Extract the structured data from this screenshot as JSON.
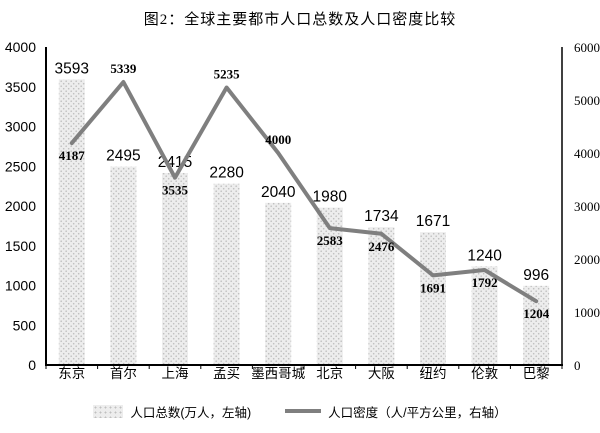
{
  "title": "图2：全球主要都市人口总数及人口密度比较",
  "legend": {
    "bar_label": "人口总数(万人，左轴)",
    "line_label": "人口密度（人/平方公里，右轴）"
  },
  "chart_data": {
    "type": "bar",
    "subtype": "bar-line-combo",
    "title": "图2：全球主要都市人口总数及人口密度比较",
    "categories": [
      "东京",
      "首尔",
      "上海",
      "孟买",
      "墨西哥城",
      "北京",
      "大阪",
      "纽约",
      "伦敦",
      "巴黎"
    ],
    "series": [
      {
        "name": "人口总数(万人，左轴)",
        "type": "bar",
        "axis": "left",
        "values": [
          3593,
          2495,
          2415,
          2280,
          2040,
          1980,
          1734,
          1671,
          1240,
          996
        ]
      },
      {
        "name": "人口密度（人/平方公里，右轴）",
        "type": "line",
        "axis": "right",
        "values": [
          4187,
          5339,
          3535,
          5235,
          4000,
          2583,
          2476,
          1691,
          1792,
          1204
        ],
        "label_positions": [
          "below",
          "above",
          "below",
          "above",
          "above",
          "below",
          "below",
          "below",
          "below",
          "below"
        ]
      }
    ],
    "left_axis": {
      "min": 0,
      "max": 4000,
      "ticks": [
        0,
        500,
        1000,
        1500,
        2000,
        2500,
        3000,
        3500,
        4000
      ]
    },
    "right_axis": {
      "min": 0,
      "max": 6000,
      "ticks": [
        0,
        1000,
        2000,
        3000,
        4000,
        5000,
        6000
      ]
    },
    "grid": false,
    "legend_position": "bottom",
    "colors": {
      "bar_fill": "#ededed",
      "bar_dot": "#bfbfbf",
      "line": "#7f7f7f",
      "axis": "#000000",
      "text": "#000000"
    }
  }
}
